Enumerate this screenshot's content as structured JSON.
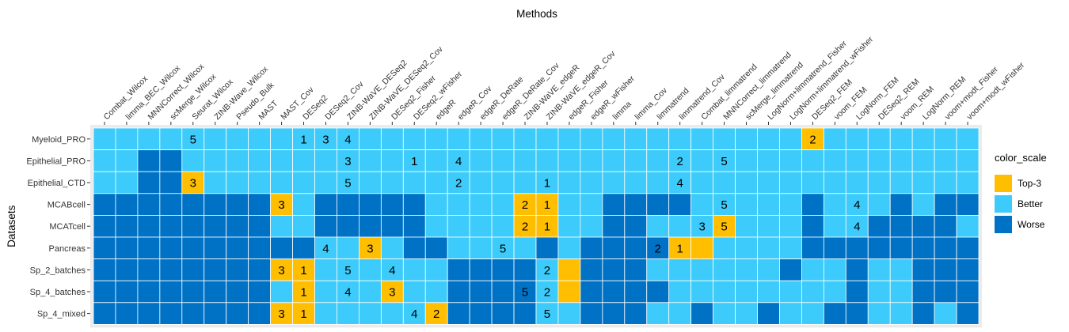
{
  "chart_data": {
    "type": "heatmap",
    "title": "Methods",
    "xlabel": "Methods",
    "ylabel": "Datasets",
    "grid": true,
    "legend_position": "right",
    "legend_title": "color_scale",
    "levels": [
      {
        "key": "T",
        "label": "Top-3",
        "color": "#FFBF00"
      },
      {
        "key": "B",
        "label": "Better",
        "color": "#3CCBFA"
      },
      {
        "key": "W",
        "label": "Worse",
        "color": "#0072C6"
      }
    ],
    "columns": [
      "Combat_Wilcox",
      "limma_BEC_Wilcox",
      "MNNCorrect_Wilcox",
      "scMerge_Wilcox",
      "Seurat_Wilcox",
      "ZINB-Wave_Wilcox",
      "Pseudo_Bulk",
      "MAST",
      "MAST_Cov",
      "DESeq2",
      "DESeq2_Cov",
      "ZINB-WaVE_DESeq2",
      "ZINB-WaVE_DESeq2_Cov",
      "DESeq2_Fisher",
      "DESeq2_wFisher",
      "edgeR",
      "edgeR_Cov",
      "edgeR_DeRate",
      "edgeR_DeRate_Cov",
      "ZINB-WaVE_edgeR",
      "ZINB-WaVE_edgeR_Cov",
      "edgeR_Fisher",
      "edgeR_wFisher",
      "limma",
      "limma_Cov",
      "limmatrend",
      "limmatrend_Cov",
      "Combat_limmatrend",
      "MNNCorrect_limmatrend",
      "scMerge_limmatrend",
      "LogNorm+limmatrend_Fisher",
      "LogNorm+limmatrend_wFisher",
      "DESeq2_FEM",
      "voom_FEM",
      "LogNorm_FEM",
      "DESeq2_REM",
      "voom_REM",
      "LogNorm_REM",
      "voom+modt_Fisher",
      "voom+modt_wFisher"
    ],
    "rows": [
      "Myeloid_PRO",
      "Epithelial_PRO",
      "Epithelial_CTD",
      "MCABcell",
      "MCATcell",
      "Pancreas",
      "Sp_2_batches",
      "Sp_4_batches",
      "Sp_4_mixed"
    ],
    "colors": [
      "BBBBBBBBBBBBBBBBBBBBBBBBBBBBBBBBTBBBBBBB",
      "BBWWBBBBBBBBBBBBBBBBBBBBBBBBBBBBBBBBBBBB",
      "BBWWTBBBBBBBBBBBBBBBBBBBBBBBBBBBBBBBBBBB",
      "WWWWWWWWTBWWWWWBBBBTTBBWWWWBBBBBWBBBWBWW",
      "WWWWWWWWBBWWWWWBBBBTTBBWWBBBTBBBWBBWWWWB",
      "WWWWWWWWWWBBTBWWBBBBWBWWWWTTBBBBWWWWWWWW",
      "WWWWWWWWTTBBBBBBWWWWBTWWWBBBBBBWBBWBBWWW",
      "WWWWWWWWBTBBBTBBWWWWBTWWWWBBBBBBBBWBBWWW",
      "WWWWWWWWTTBBBBBTWWWWBBWWWBBWBBWBBWWBBWBW"
    ],
    "cells": [
      [
        null,
        null,
        null,
        null,
        "5",
        null,
        null,
        null,
        null,
        "1",
        "3",
        "4",
        null,
        null,
        null,
        null,
        null,
        null,
        null,
        null,
        null,
        null,
        null,
        null,
        null,
        null,
        null,
        null,
        null,
        null,
        null,
        null,
        "2",
        null,
        null,
        null,
        null,
        null,
        null,
        null
      ],
      [
        null,
        null,
        null,
        null,
        null,
        null,
        null,
        null,
        null,
        null,
        null,
        "3",
        null,
        null,
        "1",
        null,
        "4",
        null,
        null,
        null,
        null,
        null,
        null,
        null,
        null,
        null,
        "2",
        null,
        "5",
        null,
        null,
        null,
        null,
        null,
        null,
        null,
        null,
        null,
        null,
        null
      ],
      [
        null,
        null,
        null,
        null,
        "3",
        null,
        null,
        null,
        null,
        null,
        null,
        "5",
        null,
        null,
        null,
        null,
        "2",
        null,
        null,
        null,
        "1",
        null,
        null,
        null,
        null,
        null,
        "4",
        null,
        null,
        null,
        null,
        null,
        null,
        null,
        null,
        null,
        null,
        null,
        null,
        null
      ],
      [
        null,
        null,
        null,
        null,
        null,
        null,
        null,
        null,
        "3",
        null,
        null,
        null,
        null,
        null,
        null,
        null,
        null,
        null,
        null,
        "2",
        "1",
        null,
        null,
        null,
        null,
        null,
        null,
        null,
        "5",
        null,
        null,
        null,
        null,
        null,
        "4",
        null,
        null,
        null,
        null,
        null
      ],
      [
        null,
        null,
        null,
        null,
        null,
        null,
        null,
        null,
        null,
        null,
        null,
        null,
        null,
        null,
        null,
        null,
        null,
        null,
        null,
        "2",
        "1",
        null,
        null,
        null,
        null,
        null,
        null,
        "3",
        "5",
        null,
        null,
        null,
        null,
        null,
        "4",
        null,
        null,
        null,
        null,
        null
      ],
      [
        null,
        null,
        null,
        null,
        null,
        null,
        null,
        null,
        null,
        null,
        "4",
        null,
        "3",
        null,
        null,
        null,
        null,
        null,
        "5",
        null,
        null,
        null,
        null,
        null,
        null,
        "2",
        "1",
        null,
        null,
        null,
        null,
        null,
        null,
        null,
        null,
        null,
        null,
        null,
        null,
        null
      ],
      [
        null,
        null,
        null,
        null,
        null,
        null,
        null,
        null,
        "3",
        "1",
        null,
        "5",
        null,
        "4",
        null,
        null,
        null,
        null,
        null,
        null,
        "2",
        null,
        null,
        null,
        null,
        null,
        null,
        null,
        null,
        null,
        null,
        null,
        null,
        null,
        null,
        null,
        null,
        null,
        null,
        null
      ],
      [
        null,
        null,
        null,
        null,
        null,
        null,
        null,
        null,
        null,
        "1",
        null,
        "4",
        null,
        "3",
        null,
        null,
        null,
        null,
        null,
        "5",
        "2",
        null,
        null,
        null,
        null,
        null,
        null,
        null,
        null,
        null,
        null,
        null,
        null,
        null,
        null,
        null,
        null,
        null,
        null,
        null
      ],
      [
        null,
        null,
        null,
        null,
        null,
        null,
        null,
        null,
        "3",
        "1",
        null,
        null,
        null,
        null,
        "4",
        "2",
        null,
        null,
        null,
        null,
        "5",
        null,
        null,
        null,
        null,
        null,
        null,
        null,
        null,
        null,
        null,
        null,
        null,
        null,
        null,
        null,
        null,
        null,
        null,
        null
      ]
    ]
  }
}
